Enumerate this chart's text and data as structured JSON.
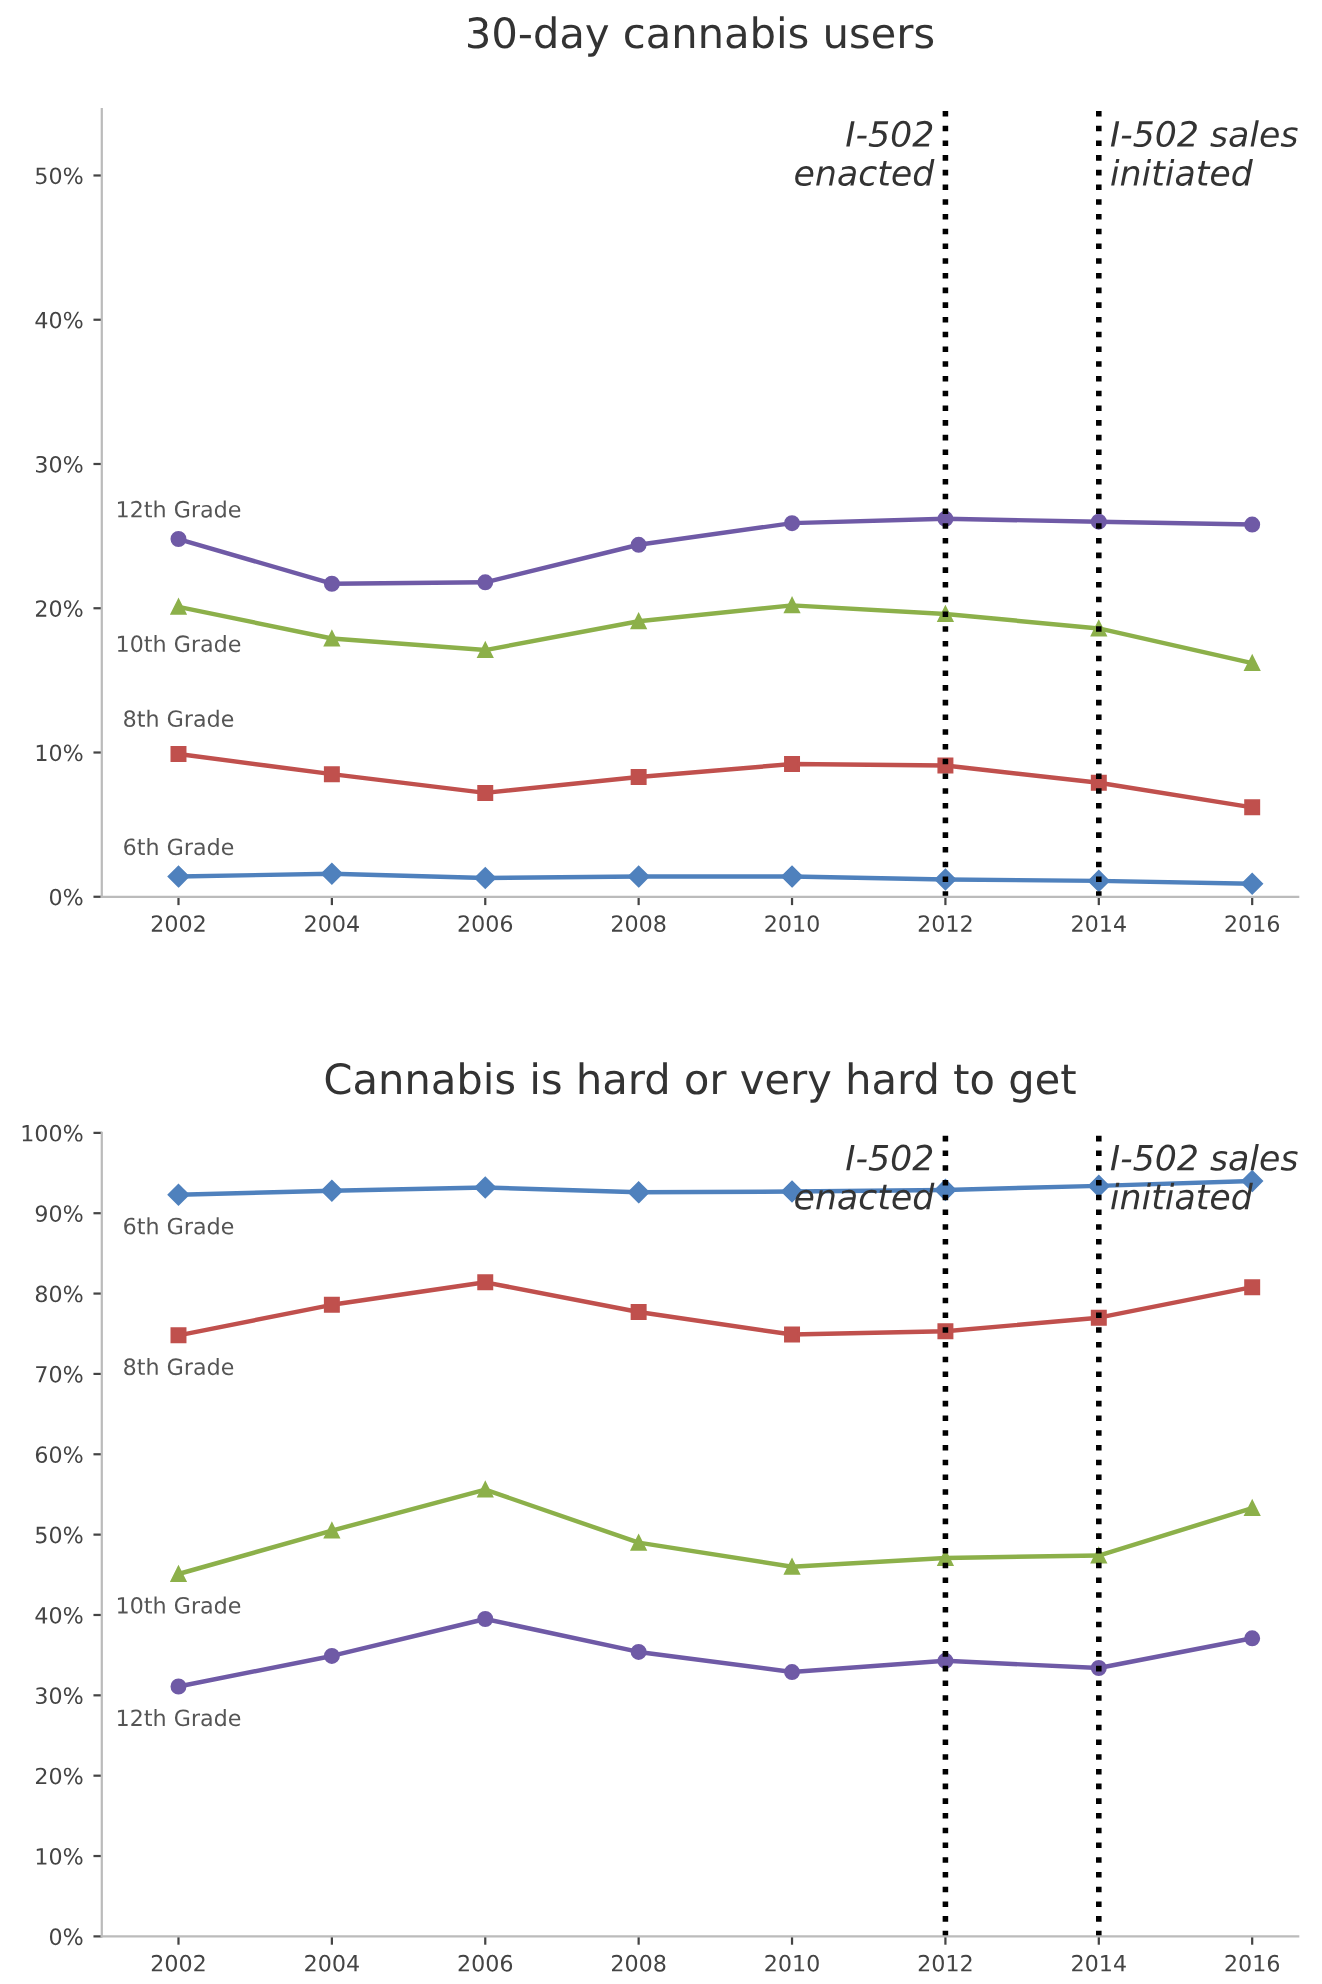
{
  "chart_data": [
    {
      "type": "line",
      "title": "30-day cannabis users",
      "x": [
        2002,
        2004,
        2006,
        2008,
        2010,
        2012,
        2014,
        2016
      ],
      "series": [
        {
          "name": "12th Grade",
          "color": "#6f5aa6",
          "marker": "circle",
          "values": [
            24.8,
            21.7,
            21.8,
            24.4,
            25.9,
            26.2,
            26.0,
            25.8
          ]
        },
        {
          "name": "10th Grade",
          "color": "#8cb04a",
          "marker": "triangle",
          "values": [
            20.1,
            17.9,
            17.1,
            19.1,
            20.2,
            19.6,
            18.6,
            16.2
          ]
        },
        {
          "name": "8th Grade",
          "color": "#c0504d",
          "marker": "square",
          "values": [
            9.9,
            8.5,
            7.2,
            8.3,
            9.2,
            9.1,
            7.9,
            6.2
          ]
        },
        {
          "name": "6th Grade",
          "color": "#4f81bd",
          "marker": "diamond",
          "values": [
            1.4,
            1.6,
            1.3,
            1.4,
            1.4,
            1.2,
            1.1,
            0.9
          ]
        }
      ],
      "xlim": [
        2001,
        2016.6
      ],
      "xticks": [
        2002,
        2004,
        2006,
        2008,
        2010,
        2012,
        2014,
        2016
      ],
      "ylim": [
        0,
        54.6
      ],
      "yticks": [
        {
          "value": 0,
          "label": "0%"
        },
        {
          "value": 10,
          "label": "10%"
        },
        {
          "value": 20,
          "label": "20%"
        },
        {
          "value": 30,
          "label": "30%"
        },
        {
          "value": 40,
          "label": "40%"
        },
        {
          "value": 50,
          "label": "50%"
        }
      ],
      "ref_lines": [
        {
          "axis": "x",
          "value": 2012,
          "label": "I-502\nenacted",
          "color": "#000000",
          "line_style": "dotted"
        },
        {
          "axis": "x",
          "value": 2014,
          "label": "I-502 sales\ninitiated",
          "color": "#000000",
          "line_style": "dotted"
        }
      ],
      "grid": false,
      "legend": false,
      "line_style": "solid"
    },
    {
      "type": "line",
      "title": "Cannabis is hard or very hard to get",
      "x": [
        2002,
        2004,
        2006,
        2008,
        2010,
        2012,
        2014,
        2016
      ],
      "series": [
        {
          "name": "6th Grade",
          "color": "#4f81bd",
          "marker": "diamond",
          "values": [
            92.3,
            92.8,
            93.2,
            92.6,
            92.7,
            92.9,
            93.4,
            94.0
          ]
        },
        {
          "name": "8th Grade",
          "color": "#c0504d",
          "marker": "square",
          "values": [
            74.8,
            78.6,
            81.4,
            77.7,
            74.9,
            75.3,
            77.0,
            80.8
          ]
        },
        {
          "name": "10th Grade",
          "color": "#8cb04a",
          "marker": "triangle",
          "values": [
            45.1,
            50.5,
            55.6,
            49.0,
            46.0,
            47.1,
            47.4,
            53.3
          ]
        },
        {
          "name": "12th Grade",
          "color": "#6f5aa6",
          "marker": "circle",
          "values": [
            31.1,
            34.9,
            39.5,
            35.4,
            32.9,
            34.3,
            33.4,
            37.1
          ]
        }
      ],
      "xlim": [
        2001,
        2016.6
      ],
      "xticks": [
        2002,
        2004,
        2006,
        2008,
        2010,
        2012,
        2014,
        2016
      ],
      "ylim": [
        0,
        100
      ],
      "yticks": [
        {
          "value": 0,
          "label": "0%"
        },
        {
          "value": 10,
          "label": "10%"
        },
        {
          "value": 20,
          "label": "20%"
        },
        {
          "value": 30,
          "label": "30%"
        },
        {
          "value": 40,
          "label": "40%"
        },
        {
          "value": 50,
          "label": "50%"
        },
        {
          "value": 60,
          "label": "60%"
        },
        {
          "value": 70,
          "label": "70%"
        },
        {
          "value": 80,
          "label": "80%"
        },
        {
          "value": 90,
          "label": "90%"
        },
        {
          "value": 100,
          "label": "100%"
        }
      ],
      "ref_lines": [
        {
          "axis": "x",
          "value": 2012,
          "label": "I-502\nenacted",
          "color": "#000000",
          "line_style": "dotted"
        },
        {
          "axis": "x",
          "value": 2014,
          "label": "I-502 sales\ninitiated",
          "color": "#000000",
          "line_style": "dotted"
        }
      ],
      "grid": false,
      "legend": false,
      "line_style": "solid"
    }
  ]
}
